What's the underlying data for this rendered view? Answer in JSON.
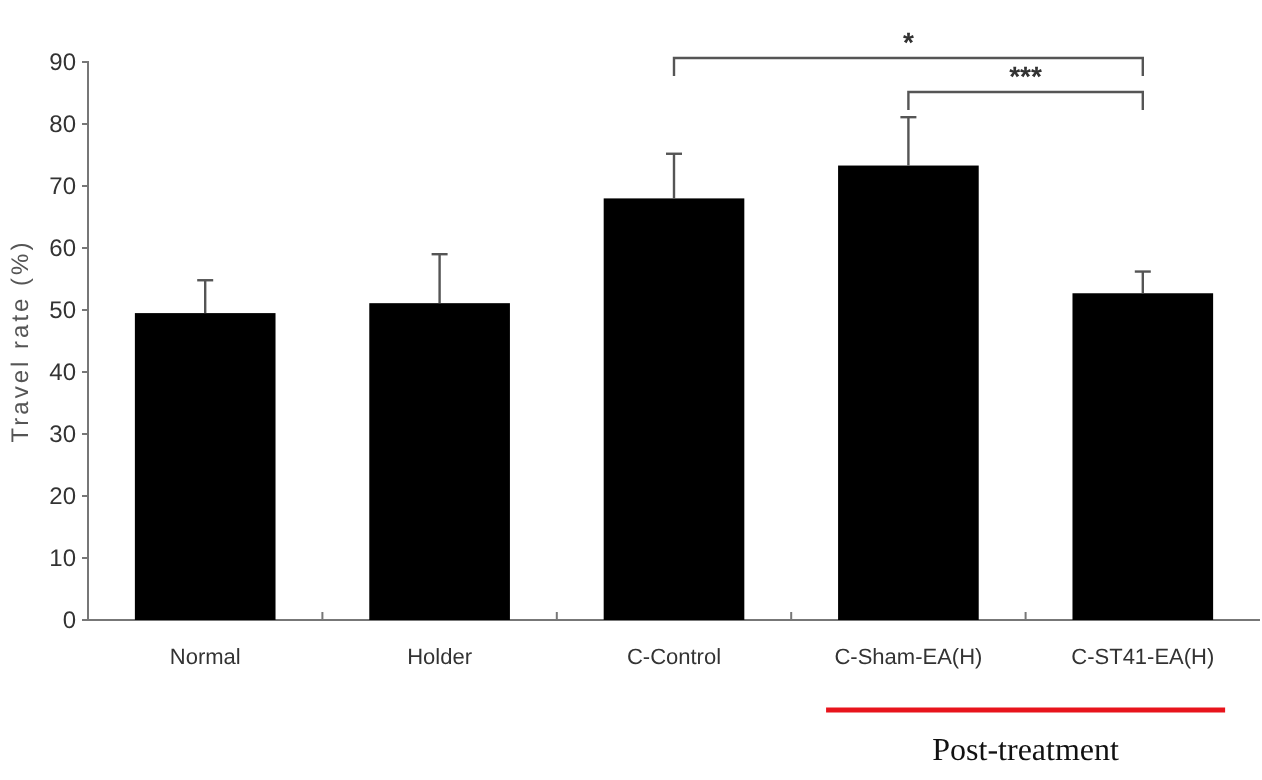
{
  "chart_data": {
    "type": "bar",
    "ylabel": "Travel rate (%)",
    "categories": [
      "Normal",
      "Holder",
      "C-Control",
      "C-Sham-EA(H)",
      "C-ST41-EA(H)"
    ],
    "values": [
      49.5,
      51.1,
      68.0,
      73.3,
      52.7
    ],
    "errors": [
      5.3,
      7.9,
      7.2,
      7.8,
      3.5
    ],
    "color": "#000000",
    "ylim": [
      0,
      90
    ],
    "yticks": [
      0,
      10,
      20,
      30,
      40,
      50,
      60,
      70,
      80,
      90
    ],
    "grid": false,
    "annotations": [
      "*",
      "***",
      "Post-treatment"
    ]
  }
}
